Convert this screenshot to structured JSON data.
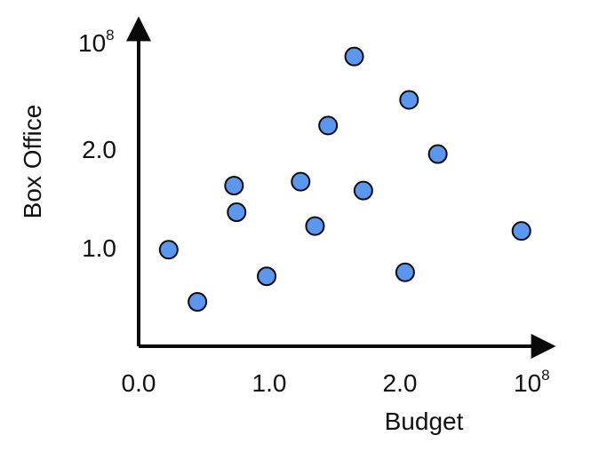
{
  "chart_data": {
    "type": "scatter",
    "title": "",
    "xlabel": "Budget",
    "ylabel": "Box Office",
    "x_ticks": [
      {
        "value": 0.0,
        "label": "0.0"
      },
      {
        "value": 1.0,
        "label": "1.0"
      },
      {
        "value": 2.0,
        "label": "2.0"
      }
    ],
    "x_max_label": {
      "base": "10",
      "exp": "8"
    },
    "y_ticks": [
      {
        "value": 1.0,
        "label": "1.0"
      },
      {
        "value": 2.0,
        "label": "2.0"
      }
    ],
    "y_max_label": {
      "base": "10",
      "exp": "8"
    },
    "xlim": [
      0.0,
      3.0
    ],
    "ylim": [
      0.0,
      3.0
    ],
    "grid": false,
    "legend": "none",
    "point_color": "#5b97ef",
    "point_outline": "#0a0a0a",
    "axis_color": "#0a0a0a",
    "series": [
      {
        "x": [
          0.23,
          0.45,
          0.73,
          0.75,
          0.98,
          1.24,
          1.35,
          1.45,
          1.65,
          1.72,
          2.04,
          2.07,
          2.29,
          2.93
        ],
        "y": [
          0.98,
          0.45,
          1.63,
          1.36,
          0.71,
          1.67,
          1.22,
          2.24,
          2.94,
          1.58,
          0.75,
          2.5,
          1.95,
          1.17
        ]
      }
    ]
  }
}
